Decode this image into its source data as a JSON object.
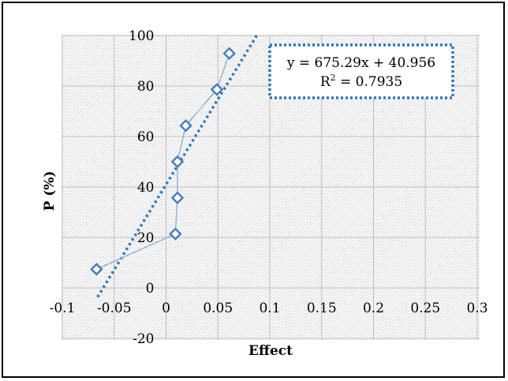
{
  "chart_data": {
    "type": "scatter",
    "xlabel": "Effect",
    "ylabel": "P (%)",
    "xlim": [
      -0.1,
      0.3
    ],
    "ylim": [
      -20,
      100
    ],
    "x_ticks": [
      "-0.1",
      "-0.05",
      "0",
      "0.05",
      "0.1",
      "0.15",
      "0.2",
      "0.25",
      "0.3"
    ],
    "y_ticks": [
      "-20",
      "0",
      "20",
      "40",
      "60",
      "80",
      "100"
    ],
    "x_tick_values": [
      -0.1,
      -0.05,
      0,
      0.05,
      0.1,
      0.15,
      0.2,
      0.25,
      0.3
    ],
    "y_tick_values": [
      -20,
      0,
      20,
      40,
      60,
      80,
      100
    ],
    "grid": true,
    "series": [
      {
        "x": [
          -0.067,
          0.009,
          0.011,
          0.011,
          0.019,
          0.049,
          0.061
        ],
        "y": [
          7.4,
          21.4,
          35.7,
          50.0,
          64.3,
          78.6,
          92.9
        ],
        "color": "#4a7ebb",
        "marker": "diamond-open",
        "line": true
      }
    ],
    "trendline": {
      "type": "linear",
      "slope": 675.29,
      "intercept": 40.956,
      "equation": "y = 675.29x + 40.956",
      "r2_label": "R",
      "r2_value": " = 0.7935",
      "color": "#2e75b6",
      "style": "dotted"
    }
  }
}
